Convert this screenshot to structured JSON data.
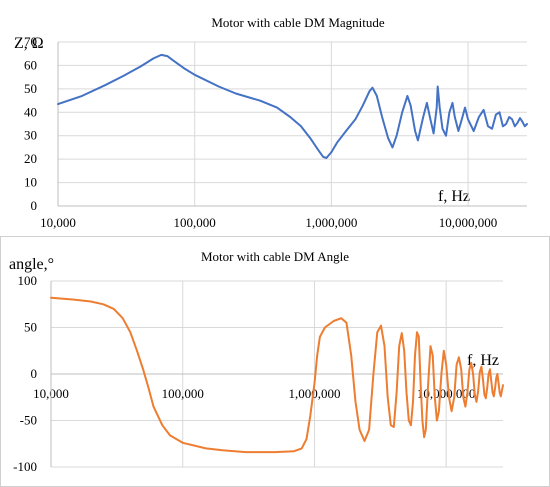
{
  "chart_data": [
    {
      "type": "line",
      "title": "Motor with cable DM Magnitude",
      "ylabel": "Z, Ω",
      "xlabel": "f, Hz",
      "xscale": "log",
      "xlim": [
        10000,
        27000000
      ],
      "ylim": [
        0,
        70
      ],
      "yticks": [
        0,
        10,
        20,
        30,
        40,
        50,
        60,
        70
      ],
      "xticks": [
        10000,
        100000,
        1000000,
        10000000
      ],
      "xtick_labels": [
        "10,000",
        "100,000",
        "1,000,000",
        "10,000,000"
      ],
      "grid": true,
      "series_color": "#4472c4",
      "series": [
        {
          "name": "",
          "points": [
            [
              10000,
              43.5
            ],
            [
              15000,
              47
            ],
            [
              22000,
              51.5
            ],
            [
              30000,
              55.5
            ],
            [
              40000,
              59.5
            ],
            [
              50000,
              63
            ],
            [
              57000,
              64.5
            ],
            [
              63000,
              64
            ],
            [
              70000,
              62
            ],
            [
              85000,
              58.5
            ],
            [
              100000,
              56
            ],
            [
              150000,
              51
            ],
            [
              200000,
              48
            ],
            [
              300000,
              45
            ],
            [
              400000,
              42
            ],
            [
              500000,
              38
            ],
            [
              600000,
              34
            ],
            [
              700000,
              29
            ],
            [
              800000,
              24
            ],
            [
              870000,
              21
            ],
            [
              920000,
              20.5
            ],
            [
              1000000,
              23
            ],
            [
              1100000,
              27
            ],
            [
              1300000,
              32.5
            ],
            [
              1500000,
              37
            ],
            [
              1700000,
              43
            ],
            [
              1900000,
              49
            ],
            [
              2000000,
              50.5
            ],
            [
              2150000,
              47
            ],
            [
              2350000,
              38
            ],
            [
              2600000,
              29
            ],
            [
              2800000,
              25
            ],
            [
              3000000,
              30
            ],
            [
              3300000,
              40
            ],
            [
              3600000,
              47
            ],
            [
              3800000,
              43
            ],
            [
              4100000,
              32
            ],
            [
              4300000,
              28
            ],
            [
              4700000,
              38
            ],
            [
              5000000,
              44
            ],
            [
              5300000,
              37
            ],
            [
              5600000,
              31
            ],
            [
              5900000,
              42
            ],
            [
              6000000,
              51
            ],
            [
              6200000,
              42
            ],
            [
              6500000,
              33
            ],
            [
              6900000,
              30
            ],
            [
              7300000,
              40
            ],
            [
              7700000,
              44
            ],
            [
              8000000,
              38
            ],
            [
              8500000,
              32
            ],
            [
              9000000,
              37
            ],
            [
              9500000,
              42
            ],
            [
              10000000,
              37
            ],
            [
              11000000,
              32
            ],
            [
              12000000,
              38
            ],
            [
              13000000,
              41
            ],
            [
              14000000,
              34
            ],
            [
              15000000,
              33
            ],
            [
              16000000,
              39
            ],
            [
              17000000,
              40
            ],
            [
              18000000,
              34
            ],
            [
              19000000,
              35
            ],
            [
              20000000,
              38
            ],
            [
              21000000,
              37
            ],
            [
              22000000,
              34
            ],
            [
              23000000,
              35.5
            ],
            [
              24000000,
              37.5
            ],
            [
              25000000,
              36
            ],
            [
              26000000,
              34
            ],
            [
              27000000,
              35
            ]
          ]
        }
      ]
    },
    {
      "type": "line",
      "title": "Motor with cable DM Angle",
      "ylabel": "angle,°",
      "xlabel": "f, Hz",
      "xscale": "log",
      "xlim": [
        10000,
        27000000
      ],
      "ylim": [
        -100,
        100
      ],
      "yticks": [
        -100,
        -50,
        0,
        50,
        100
      ],
      "xticks": [
        10000,
        100000,
        1000000,
        10000000
      ],
      "xtick_labels": [
        "10,000",
        "100,000",
        "1,000,000",
        "10,000,000"
      ],
      "grid": true,
      "series_color": "#ed7d31",
      "series": [
        {
          "name": "",
          "points": [
            [
              10000,
              82
            ],
            [
              15000,
              80
            ],
            [
              20000,
              78
            ],
            [
              25000,
              75
            ],
            [
              30000,
              70
            ],
            [
              35000,
              60
            ],
            [
              40000,
              45
            ],
            [
              45000,
              25
            ],
            [
              50000,
              5
            ],
            [
              55000,
              -15
            ],
            [
              60000,
              -35
            ],
            [
              70000,
              -55
            ],
            [
              80000,
              -66
            ],
            [
              100000,
              -74
            ],
            [
              150000,
              -80
            ],
            [
              200000,
              -82
            ],
            [
              300000,
              -84
            ],
            [
              500000,
              -84
            ],
            [
              700000,
              -83
            ],
            [
              800000,
              -80
            ],
            [
              870000,
              -70
            ],
            [
              930000,
              -45
            ],
            [
              1000000,
              -10
            ],
            [
              1050000,
              20
            ],
            [
              1100000,
              40
            ],
            [
              1200000,
              50
            ],
            [
              1400000,
              57
            ],
            [
              1600000,
              60
            ],
            [
              1750000,
              55
            ],
            [
              1900000,
              20
            ],
            [
              2050000,
              -30
            ],
            [
              2200000,
              -60
            ],
            [
              2400000,
              -72
            ],
            [
              2600000,
              -60
            ],
            [
              2800000,
              0
            ],
            [
              3000000,
              45
            ],
            [
              3200000,
              52
            ],
            [
              3400000,
              30
            ],
            [
              3600000,
              -25
            ],
            [
              3800000,
              -55
            ],
            [
              4000000,
              -57
            ],
            [
              4200000,
              -20
            ],
            [
              4400000,
              30
            ],
            [
              4600000,
              44
            ],
            [
              4800000,
              25
            ],
            [
              5000000,
              -20
            ],
            [
              5200000,
              -50
            ],
            [
              5400000,
              -55
            ],
            [
              5600000,
              -30
            ],
            [
              5800000,
              20
            ],
            [
              6000000,
              45
            ],
            [
              6200000,
              40
            ],
            [
              6400000,
              -10
            ],
            [
              6600000,
              -50
            ],
            [
              6800000,
              -68
            ],
            [
              7000000,
              -60
            ],
            [
              7300000,
              -10
            ],
            [
              7600000,
              30
            ],
            [
              7900000,
              20
            ],
            [
              8200000,
              -25
            ],
            [
              8500000,
              -50
            ],
            [
              8800000,
              -40
            ],
            [
              9200000,
              0
            ],
            [
              9600000,
              25
            ],
            [
              10000000,
              10
            ],
            [
              10500000,
              -25
            ],
            [
              11000000,
              -40
            ],
            [
              11500000,
              -25
            ],
            [
              12000000,
              10
            ],
            [
              12500000,
              18
            ],
            [
              13000000,
              5
            ],
            [
              13500000,
              -25
            ],
            [
              14000000,
              -35
            ],
            [
              14500000,
              -20
            ],
            [
              15000000,
              5
            ],
            [
              15500000,
              12
            ],
            [
              16000000,
              0
            ],
            [
              16500000,
              -22
            ],
            [
              17000000,
              -30
            ],
            [
              17500000,
              -18
            ],
            [
              18000000,
              2
            ],
            [
              18500000,
              8
            ],
            [
              19000000,
              -5
            ],
            [
              19500000,
              -22
            ],
            [
              20000000,
              -26
            ],
            [
              20500000,
              -15
            ],
            [
              21000000,
              0
            ],
            [
              21500000,
              5
            ],
            [
              22000000,
              -8
            ],
            [
              22500000,
              -20
            ],
            [
              23000000,
              -24
            ],
            [
              23500000,
              -15
            ],
            [
              24000000,
              -4
            ],
            [
              24500000,
              0
            ],
            [
              25000000,
              -10
            ],
            [
              25500000,
              -20
            ],
            [
              26000000,
              -24
            ],
            [
              26500000,
              -18
            ],
            [
              27000000,
              -12
            ]
          ]
        }
      ]
    }
  ]
}
